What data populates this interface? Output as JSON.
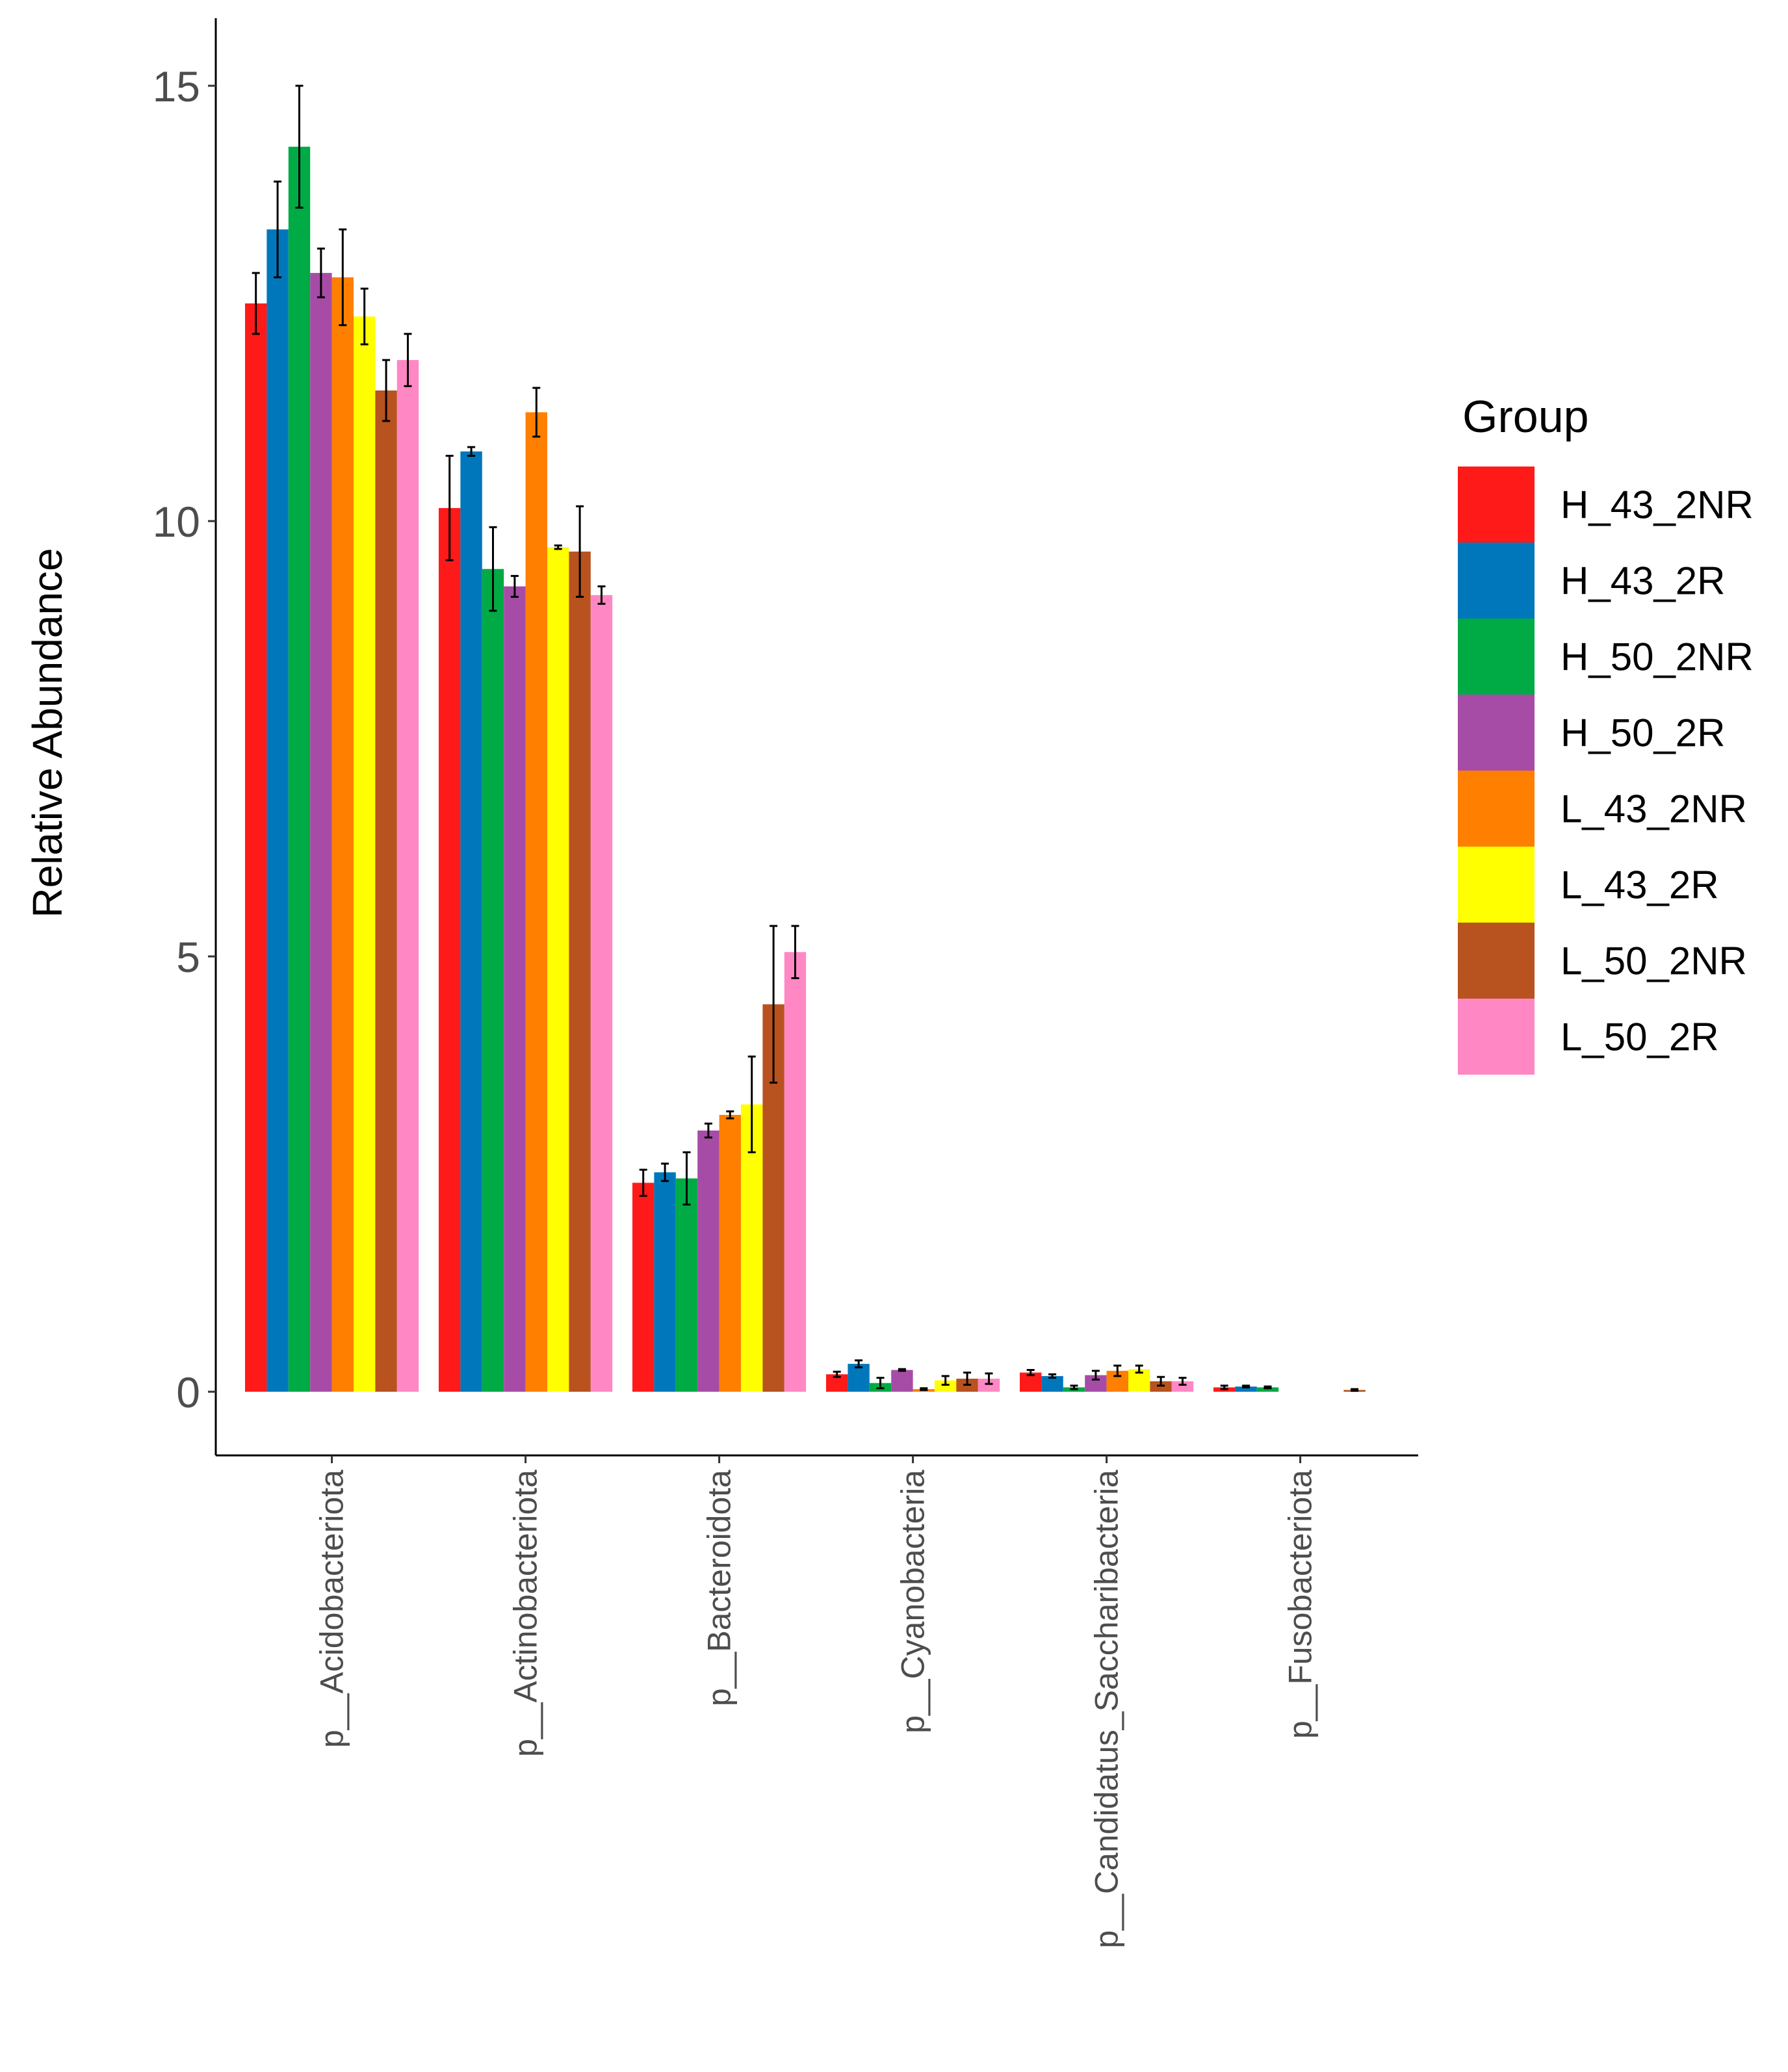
{
  "chart_data": {
    "type": "bar",
    "title": "",
    "xlabel": "",
    "ylabel": "Relative Abundance",
    "ylim": [
      0,
      15.7
    ],
    "yticks": [
      0,
      5,
      10,
      15
    ],
    "grid": false,
    "legend_position": "right",
    "legend_title": "Group",
    "categories": [
      "p__Acidobacteriota",
      "p__Actinobacteriota",
      "p__Bacteroidota",
      "p__Cyanobacteria",
      "p__Candidatus_Saccharibacteria",
      "p__Fusobacteriota"
    ],
    "series": [
      {
        "name": "H_43_2NR",
        "color": "#ff1a1a",
        "values": [
          12.5,
          10.15,
          2.4,
          0.2,
          0.22,
          0.05
        ],
        "errors": [
          0.35,
          0.6,
          0.15,
          0.03,
          0.03,
          0.02
        ]
      },
      {
        "name": "H_43_2R",
        "color": "#0077bb",
        "values": [
          13.35,
          10.8,
          2.52,
          0.32,
          0.18,
          0.06
        ],
        "errors": [
          0.55,
          0.05,
          0.1,
          0.04,
          0.02,
          0.01
        ]
      },
      {
        "name": "H_50_2NR",
        "color": "#00aa44",
        "values": [
          14.3,
          9.45,
          2.45,
          0.1,
          0.05,
          0.05
        ],
        "errors": [
          0.7,
          0.48,
          0.3,
          0.06,
          0.02,
          0.01
        ]
      },
      {
        "name": "H_50_2R",
        "color": "#a64ca6",
        "values": [
          12.85,
          9.25,
          3.0,
          0.25,
          0.19,
          0.0
        ],
        "errors": [
          0.28,
          0.12,
          0.08,
          0.01,
          0.05,
          0.0
        ]
      },
      {
        "name": "L_43_2NR",
        "color": "#ff7f00",
        "values": [
          12.8,
          11.25,
          3.18,
          0.03,
          0.24,
          0.0
        ],
        "errors": [
          0.55,
          0.28,
          0.04,
          0.01,
          0.06,
          0.0
        ]
      },
      {
        "name": "L_43_2R",
        "color": "#ffff00",
        "values": [
          12.35,
          9.7,
          3.3,
          0.13,
          0.26,
          0.0
        ],
        "errors": [
          0.32,
          0.02,
          0.55,
          0.05,
          0.04,
          0.0
        ]
      },
      {
        "name": "L_50_2NR",
        "color": "#b8521f",
        "values": [
          11.5,
          9.65,
          4.45,
          0.15,
          0.12,
          0.02
        ],
        "errors": [
          0.35,
          0.52,
          0.9,
          0.07,
          0.05,
          0.01
        ]
      },
      {
        "name": "L_50_2R",
        "color": "#ff88c4",
        "values": [
          11.85,
          9.15,
          5.05,
          0.15,
          0.12,
          0.0
        ],
        "errors": [
          0.3,
          0.1,
          0.3,
          0.06,
          0.04,
          0.0
        ]
      }
    ]
  }
}
